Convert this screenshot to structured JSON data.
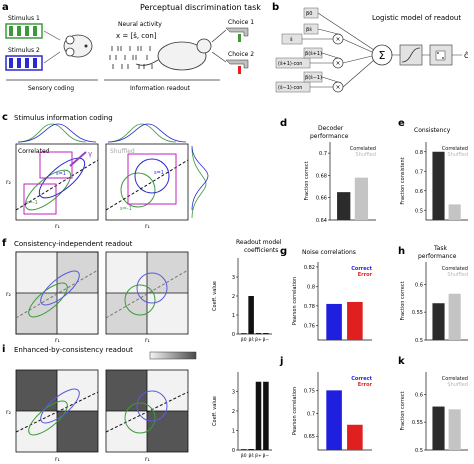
{
  "panels": {
    "a": {
      "letter": "a",
      "title": "Perceptual discrimination task",
      "stimulus1": "Stimulus 1",
      "stimulus2": "Stimulus 2",
      "neural_activity": "Neural activity",
      "equation": "x = [ŝ, con]",
      "choice1": "Choice 1",
      "choice2": "Choice 2",
      "sensory_coding": "Sensory coding",
      "information_readout": "Information readout"
    },
    "b": {
      "letter": "b",
      "title": "Logistic model of readout",
      "inputs": [
        "β0",
        "ŝ",
        "βŝ",
        "(ŝ+1)·con",
        "β(ŝ+1)",
        "(ŝ−1)·con",
        "β(ŝ−1)"
      ],
      "sum_symbol": "Σ",
      "output": "ĉ"
    },
    "c": {
      "letter": "c",
      "title": "Stimulus information coding",
      "correlated": "Correlated",
      "shuffled": "Shuffled",
      "s_plus": "s=1",
      "s_minus": "s=-1",
      "gamma": "γ",
      "xlabel": "r₁",
      "ylabel": "r₂"
    },
    "d": {
      "letter": "d",
      "title_line1": "Decoder",
      "title_line2": "performance",
      "ylabel": "Fraction correct",
      "legend": [
        "Correlated",
        "Shuffled"
      ],
      "ticks": [
        "0.64",
        "0.66",
        "0.68",
        "0.7"
      ]
    },
    "e": {
      "letter": "e",
      "title": "Consistency",
      "ylabel": "Fraction consistent",
      "legend": [
        "Correlated",
        "Shuffled"
      ],
      "ticks": [
        "0.5",
        "0.6",
        "0.7",
        "0.8"
      ]
    },
    "f": {
      "letter": "f",
      "title": "Consistency-independent readout",
      "coef_title_line1": "Readout model",
      "coef_title_line2": "coefficients",
      "ylabel": "Coeff. value",
      "xlabel": "r₁",
      "ylabel2": "r₂",
      "ticks": [
        "0",
        "1",
        "2",
        "3"
      ],
      "categories": [
        "β0",
        "βŝ",
        "β+",
        "β−"
      ]
    },
    "colorbar": {
      "label": "p(c = ŝ|x)",
      "min": "0.5",
      "max": "1"
    },
    "g": {
      "letter": "g",
      "title": "Noise correlations",
      "ylabel": "Pearson correlation",
      "legend": [
        "Correct",
        "Error"
      ],
      "ticks": [
        "0.76",
        "0.78",
        "0.8",
        "0.82"
      ]
    },
    "h": {
      "letter": "h",
      "title_line1": "Task",
      "title_line2": "performance",
      "ylabel": "Fraction correct",
      "legend": [
        "Correlated",
        "Shuffled"
      ],
      "ticks": [
        "0.5",
        "0.55",
        "0.6"
      ]
    },
    "i": {
      "letter": "i",
      "title": "Enhanced-by-consistency readout",
      "ylabel": "Coeff. value",
      "xlabel": "r₁",
      "ylabel2": "r₂",
      "ticks": [
        "0",
        "1",
        "2",
        "3"
      ],
      "categories": [
        "β0",
        "βŝ",
        "β+",
        "β−"
      ]
    },
    "j": {
      "letter": "j",
      "ylabel": "Pearson correlation",
      "legend": [
        "Correct",
        "Error"
      ],
      "ticks": [
        "0.65",
        "0.7",
        "0.75"
      ]
    },
    "k": {
      "letter": "k",
      "ylabel": "Fraction correct",
      "legend": [
        "Correlated",
        "Shuffled"
      ],
      "ticks": [
        "0.5",
        "0.55",
        "0.6"
      ]
    }
  },
  "colors": {
    "dark_bar": "#2b2b2b",
    "light_bar": "#c4c4c4",
    "correct": "#1f1fe0",
    "error": "#e01f1f",
    "stim1": "#3c9a3c",
    "stim2": "#2a2ad0",
    "magenta": "#c020c0",
    "panel_gray": "#d6d6d6"
  },
  "chart_data": [
    {
      "id": "d",
      "type": "bar",
      "categories": [
        "Correlated",
        "Shuffled"
      ],
      "values": [
        0.665,
        0.678
      ],
      "ylim": [
        0.64,
        0.71
      ],
      "ylabel": "Fraction correct"
    },
    {
      "id": "e",
      "type": "bar",
      "categories": [
        "Correlated",
        "Shuffled"
      ],
      "values": [
        0.8,
        0.53
      ],
      "ylim": [
        0.45,
        0.85
      ],
      "ylabel": "Fraction consistent"
    },
    {
      "id": "f",
      "type": "bar",
      "categories": [
        "β0",
        "βŝ",
        "β+",
        "β−"
      ],
      "values": [
        0.0,
        2.0,
        0.05,
        0.05
      ],
      "ylim": [
        0,
        4
      ],
      "ylabel": "Coeff. value"
    },
    {
      "id": "g",
      "type": "bar",
      "categories": [
        "Correct",
        "Error"
      ],
      "values": [
        0.782,
        0.784
      ],
      "ylim": [
        0.745,
        0.825
      ],
      "ylabel": "Pearson correlation"
    },
    {
      "id": "h",
      "type": "bar",
      "categories": [
        "Correlated",
        "Shuffled"
      ],
      "values": [
        0.566,
        0.583
      ],
      "ylim": [
        0.5,
        0.64
      ],
      "ylabel": "Fraction correct"
    },
    {
      "id": "i",
      "type": "bar",
      "categories": [
        "β0",
        "βŝ",
        "β+",
        "β−"
      ],
      "values": [
        0.0,
        0.05,
        3.5,
        3.5
      ],
      "ylim": [
        0,
        4
      ],
      "ylabel": "Coeff. value"
    },
    {
      "id": "j",
      "type": "bar",
      "categories": [
        "Correct",
        "Error"
      ],
      "values": [
        0.75,
        0.675
      ],
      "ylim": [
        0.62,
        0.79
      ],
      "ylabel": "Pearson correlation"
    },
    {
      "id": "k",
      "type": "bar",
      "categories": [
        "Correlated",
        "Shuffled"
      ],
      "values": [
        0.578,
        0.573
      ],
      "ylim": [
        0.5,
        0.64
      ],
      "ylabel": "Fraction correct"
    }
  ]
}
